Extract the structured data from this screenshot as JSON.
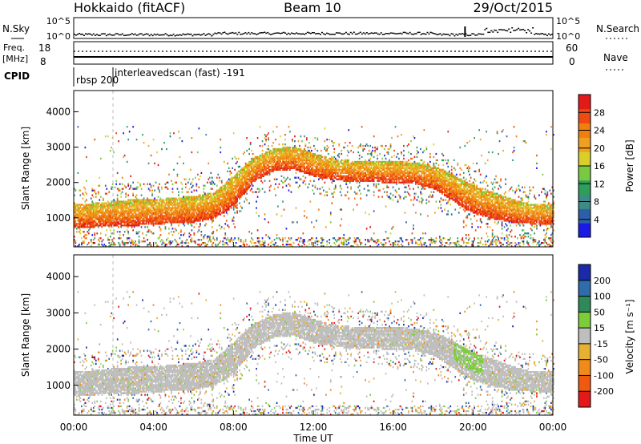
{
  "header": {
    "station": "Hokkaido (fitACF)",
    "beam": "Beam 10",
    "date": "29/Oct/2015"
  },
  "strip": {
    "nsky_label": "N.Sky",
    "nsky_ticks": [
      "10^5",
      "10^0"
    ],
    "nsearch_label": "N.Search",
    "nsearch_ticks": [
      "10^5",
      "10^0"
    ],
    "freq_label_1": "Freq.",
    "freq_label_2": "[MHz]",
    "freq_ticks": [
      "18",
      "8"
    ],
    "nave_label": "Nave",
    "nave_ticks": [
      "60",
      "0"
    ],
    "cpid_label": "CPID",
    "cpid_segments": [
      {
        "name": "rbsp 200",
        "start_hour": 0.0,
        "end_hour": 1.95
      },
      {
        "name": "interleavedscan (fast) -191",
        "start_hour": 1.95,
        "end_hour": 24.0
      }
    ]
  },
  "axes": {
    "ylabel": "Slant Range [km]",
    "yticks": [
      1000,
      2000,
      3000,
      4000
    ],
    "xlabel": "Time UT",
    "xticks": [
      "00:00",
      "04:00",
      "08:00",
      "12:00",
      "16:00",
      "20:00",
      "00:00"
    ]
  },
  "power_colorbar": {
    "label": "Power [dB]",
    "ticks": [
      "4",
      "8",
      "12",
      "16",
      "20",
      "24",
      "28"
    ],
    "colors": [
      "#1a1ae6",
      "#2d5fa8",
      "#3d8a86",
      "#2e9e5a",
      "#7ac943",
      "#d9cf2a",
      "#f0a020",
      "#f07f10",
      "#ee4a12",
      "#e41a1a"
    ]
  },
  "velocity_colorbar": {
    "label": "Velocity [m s⁻¹]",
    "ticks": [
      "200",
      "100",
      "50",
      "15",
      "-15",
      "-50",
      "-100",
      "-200"
    ],
    "colors": [
      "#1a2aa8",
      "#2e6cab",
      "#2e8a5a",
      "#7ccd3a",
      "#bebebe",
      "#e8b032",
      "#f08a1a",
      "#f05a10",
      "#e41a1a"
    ]
  },
  "chart_data": {
    "type": "heatmap",
    "title": "Hokkaido (fitACF) Beam 10 29/Oct/2015",
    "xlabel": "Time UT",
    "ylabel": "Slant Range [km]",
    "xlim_hours": [
      0,
      24
    ],
    "ylim_km": [
      180,
      4600
    ],
    "echo_band": {
      "hours": [
        0,
        1,
        2,
        3,
        4,
        5,
        6,
        7,
        8,
        9,
        10,
        11,
        12,
        13,
        14,
        15,
        16,
        17,
        18,
        19,
        20,
        21,
        22,
        23,
        24
      ],
      "lower_km": [
        700,
        720,
        750,
        750,
        800,
        820,
        850,
        950,
        1300,
        2000,
        2300,
        2350,
        2150,
        2050,
        2000,
        2000,
        1950,
        1950,
        1800,
        1450,
        1100,
        950,
        850,
        800,
        800
      ],
      "upper_km": [
        1350,
        1400,
        1450,
        1500,
        1500,
        1550,
        1600,
        1700,
        2200,
        2700,
        2950,
        3000,
        2800,
        2650,
        2600,
        2600,
        2600,
        2550,
        2450,
        2200,
        1900,
        1700,
        1500,
        1350,
        1350
      ]
    },
    "scatter_upper": {
      "max_km": 3600
    },
    "nsky_spike_hour": 19.6,
    "freq_level_MHz": 11.0,
    "nave_level": 20
  }
}
